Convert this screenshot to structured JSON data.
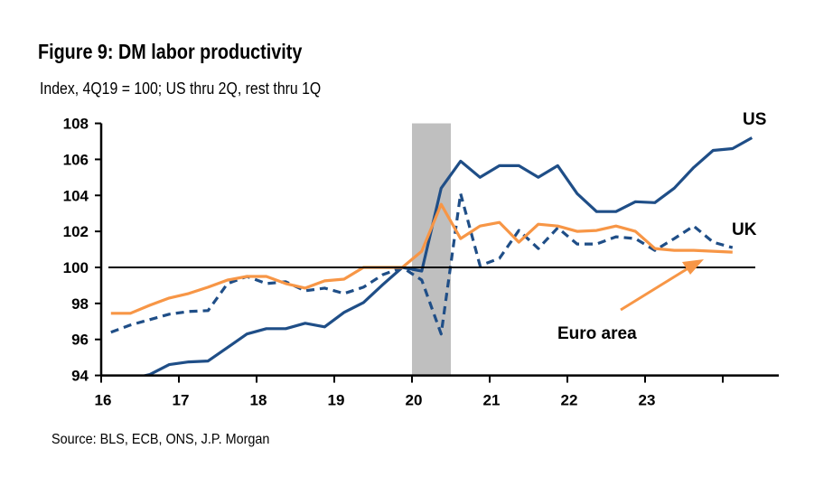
{
  "chart_data": {
    "type": "line",
    "title": "Figure 9: DM labor productivity",
    "subtitle": "Index, 4Q19 = 100; US thru 2Q, rest thru 1Q",
    "source": "Source: BLS, ECB, ONS, J.P. Morgan",
    "xlabel": "",
    "ylabel": "",
    "ylim": [
      94,
      108
    ],
    "yticks": [
      "94",
      "96",
      "98",
      "100",
      "102",
      "104",
      "106",
      "108"
    ],
    "xticks": [
      "16",
      "17",
      "18",
      "19",
      "20",
      "21",
      "22",
      "23"
    ],
    "x_start_quarter": "1Q16",
    "frequency": "quarterly",
    "reference_line": 100,
    "shaded_period": {
      "from": "1Q20",
      "to": "2Q20",
      "color": "#bfbfbf"
    },
    "series": [
      {
        "name": "US",
        "color": "#1f4e87",
        "style": "solid",
        "values": [
          93.6,
          93.8,
          94.05,
          94.6,
          94.75,
          94.8,
          95.55,
          96.3,
          96.6,
          96.6,
          96.9,
          96.7,
          97.5,
          98.05,
          99.05,
          100,
          99.8,
          104.4,
          105.9,
          105.0,
          105.65,
          105.65,
          105.0,
          105.65,
          104.1,
          103.1,
          103.1,
          103.65,
          103.6,
          104.4,
          105.55,
          106.5,
          106.6,
          107.2
        ]
      },
      {
        "name": "UK",
        "color": "#1f4e87",
        "style": "dashed",
        "values": [
          96.4,
          96.8,
          97.1,
          97.4,
          97.55,
          97.6,
          99.1,
          99.5,
          99.1,
          99.2,
          98.7,
          98.85,
          98.55,
          98.9,
          99.6,
          100,
          99.3,
          96.3,
          104.1,
          100.1,
          100.5,
          102.05,
          101.05,
          102.2,
          101.3,
          101.3,
          101.7,
          101.6,
          100.95,
          101.6,
          102.3,
          101.4,
          101.1
        ]
      },
      {
        "name": "Euro area",
        "color": "#f79646",
        "style": "solid",
        "values": [
          97.45,
          97.45,
          97.9,
          98.3,
          98.55,
          98.9,
          99.3,
          99.5,
          99.5,
          99.1,
          98.85,
          99.25,
          99.35,
          100,
          100,
          100,
          100.9,
          103.5,
          101.6,
          102.3,
          102.5,
          101.4,
          102.4,
          102.3,
          102.0,
          102.05,
          102.3,
          102.0,
          101.05,
          100.95,
          100.95,
          100.9,
          100.85
        ]
      }
    ],
    "annotations": {
      "us": "US",
      "uk": "UK",
      "euro": "Euro area"
    }
  }
}
